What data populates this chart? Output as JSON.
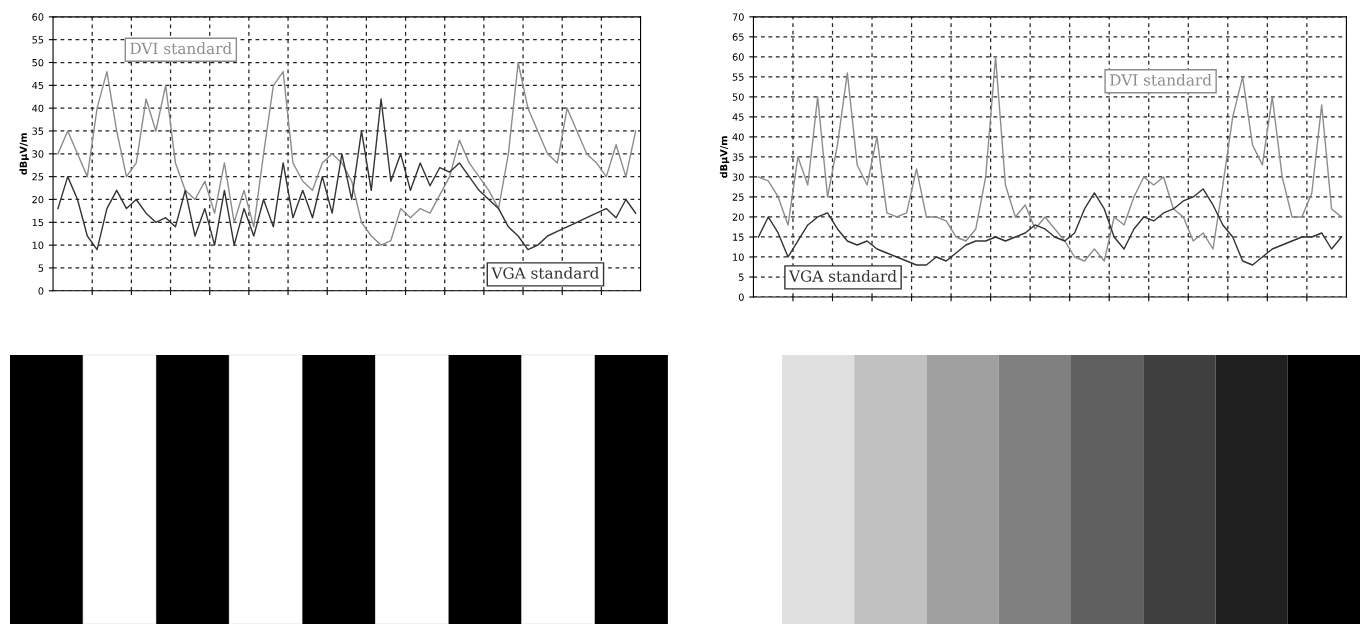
{
  "chart_data": [
    {
      "type": "line",
      "ylabel": "dBμV/m",
      "categories": [
        null,
        null,
        null,
        null,
        null,
        null,
        null,
        null,
        null,
        null,
        null,
        null,
        null,
        null,
        null,
        null,
        null,
        null,
        null,
        null,
        null,
        null,
        null,
        null,
        null,
        null,
        null,
        null,
        null,
        null,
        null,
        null,
        null,
        null,
        null,
        null,
        null,
        null,
        null,
        null,
        null,
        null,
        null,
        null,
        null,
        null,
        null,
        null,
        null,
        null,
        null,
        null,
        null,
        null,
        null,
        null,
        null,
        null,
        null,
        null
      ],
      "ylim": [
        0,
        60
      ],
      "yticks": [
        0,
        5,
        10,
        15,
        20,
        25,
        30,
        35,
        40,
        45,
        50,
        55,
        60
      ],
      "grid": true,
      "legend": false,
      "line_style": "solid",
      "tick_labels": "y",
      "series": [
        {
          "name": "DVI standard",
          "color": "#8c8c8c",
          "values": [
            30,
            35,
            30,
            25,
            40,
            48,
            35,
            25,
            28,
            42,
            35,
            45,
            28,
            22,
            20,
            24,
            17,
            28,
            15,
            22,
            14,
            30,
            45,
            48,
            28,
            24,
            22,
            28,
            30,
            28,
            24,
            15,
            12,
            10,
            11,
            18,
            16,
            18,
            17,
            21,
            25,
            33,
            28,
            25,
            22,
            18,
            30,
            50,
            40,
            35,
            30,
            28,
            40,
            35,
            30,
            28,
            25,
            32,
            25,
            35
          ]
        },
        {
          "name": "VGA standard",
          "color": "#333333",
          "values": [
            18,
            25,
            20,
            12,
            9,
            18,
            22,
            18,
            20,
            17,
            15,
            16,
            14,
            22,
            12,
            18,
            10,
            22,
            10,
            18,
            12,
            20,
            14,
            28,
            16,
            22,
            16,
            25,
            17,
            30,
            20,
            35,
            22,
            42,
            24,
            30,
            22,
            28,
            23,
            27,
            26,
            28,
            25,
            22,
            20,
            18,
            14,
            12,
            9,
            10,
            12,
            13,
            14,
            15,
            16,
            17,
            18,
            16,
            20,
            17
          ]
        }
      ]
    },
    {
      "type": "line",
      "ylabel": "dBμV/m",
      "categories": [
        null,
        null,
        null,
        null,
        null,
        null,
        null,
        null,
        null,
        null,
        null,
        null,
        null,
        null,
        null,
        null,
        null,
        null,
        null,
        null,
        null,
        null,
        null,
        null,
        null,
        null,
        null,
        null,
        null,
        null,
        null,
        null,
        null,
        null,
        null,
        null,
        null,
        null,
        null,
        null,
        null,
        null,
        null,
        null,
        null,
        null,
        null,
        null,
        null,
        null,
        null,
        null,
        null,
        null,
        null,
        null,
        null,
        null,
        null,
        null
      ],
      "ylim": [
        0,
        70
      ],
      "yticks": [
        0,
        5,
        10,
        15,
        20,
        25,
        30,
        35,
        40,
        45,
        50,
        55,
        60,
        65,
        70
      ],
      "grid": true,
      "legend": false,
      "line_style": "solid",
      "tick_labels": "y",
      "series": [
        {
          "name": "DVI standard",
          "color": "#8c8c8c",
          "values": [
            30,
            29,
            25,
            18,
            35,
            28,
            50,
            25,
            38,
            56,
            33,
            28,
            40,
            21,
            20,
            21,
            32,
            20,
            20,
            19,
            15,
            14,
            17,
            30,
            60,
            28,
            20,
            23,
            17,
            20,
            17,
            14,
            10,
            9,
            12,
            9,
            20,
            18,
            25,
            30,
            28,
            30,
            22,
            20,
            14,
            16,
            12,
            28,
            45,
            55,
            38,
            33,
            50,
            30,
            20,
            20,
            26,
            48,
            22,
            20
          ]
        },
        {
          "name": "VGA standard",
          "color": "#333333",
          "values": [
            15,
            20,
            16,
            10,
            14,
            18,
            20,
            21,
            17,
            14,
            13,
            14,
            12,
            11,
            10,
            9,
            8,
            8,
            10,
            9,
            11,
            13,
            14,
            14,
            15,
            14,
            15,
            16,
            18,
            17,
            15,
            14,
            16,
            22,
            26,
            22,
            15,
            12,
            17,
            20,
            19,
            21,
            22,
            24,
            25,
            27,
            23,
            18,
            15,
            9,
            8,
            10,
            12,
            13,
            14,
            15,
            15,
            16,
            12,
            15
          ]
        }
      ]
    }
  ]
}
